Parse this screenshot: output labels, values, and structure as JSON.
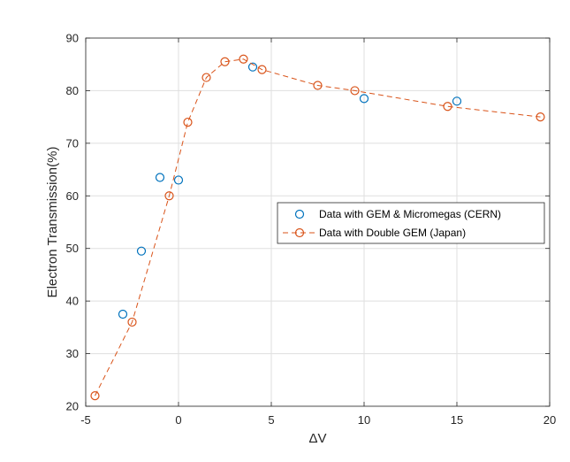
{
  "chart_data": {
    "type": "scatter",
    "title": "",
    "xlabel": "ΔV",
    "ylabel": "Electron Transmission(%)",
    "xlim": [
      -5,
      20
    ],
    "ylim": [
      20,
      90
    ],
    "xticks": [
      -5,
      0,
      5,
      10,
      15,
      20
    ],
    "yticks": [
      20,
      30,
      40,
      50,
      60,
      70,
      80,
      90
    ],
    "xtick_labels": [
      "-5",
      "0",
      "5",
      "10",
      "15",
      "20"
    ],
    "ytick_labels": [
      "20",
      "30",
      "40",
      "50",
      "60",
      "70",
      "80",
      "90"
    ],
    "grid": true,
    "legend_position": "center-right",
    "series": [
      {
        "name": "Data with GEM & Micromegas (CERN)",
        "style": "markers",
        "color": "#0072BD",
        "marker": "circle",
        "x": [
          -3,
          -2,
          -1,
          0,
          4,
          10,
          15
        ],
        "y": [
          37.5,
          49.5,
          63.5,
          63,
          84.5,
          78.5,
          78
        ]
      },
      {
        "name": "Data with Double GEM (Japan)",
        "style": "dashed-line-markers",
        "color": "#D95319",
        "marker": "circle",
        "x": [
          -4.5,
          -2.5,
          -0.5,
          0.5,
          1.5,
          2.5,
          3.5,
          4.5,
          7.5,
          9.5,
          14.5,
          19.5
        ],
        "y": [
          22,
          36,
          60,
          74,
          82.5,
          85.5,
          86,
          84,
          81,
          80,
          77,
          75
        ]
      }
    ]
  }
}
